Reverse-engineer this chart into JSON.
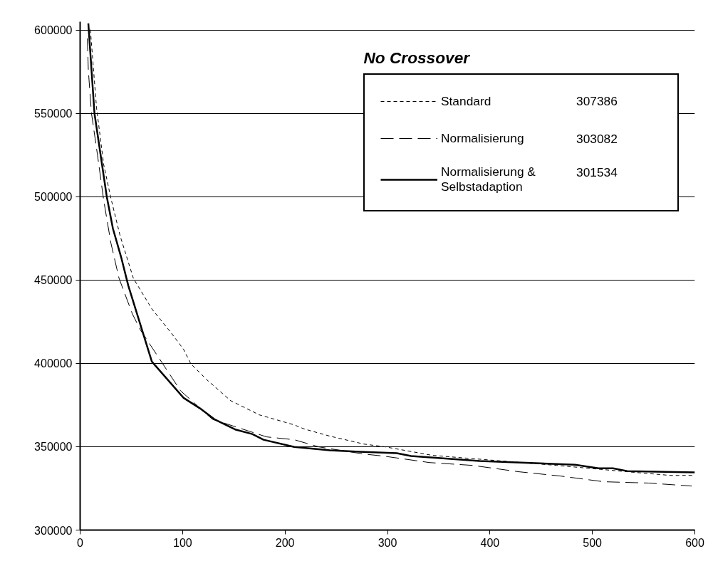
{
  "chart_data": {
    "type": "line",
    "title": "No Crossover",
    "xlim": [
      0,
      600
    ],
    "ylim": [
      300000,
      605000
    ],
    "xticks": [
      0,
      100,
      200,
      300,
      400,
      500,
      600
    ],
    "yticks": [
      300000,
      350000,
      400000,
      450000,
      500000,
      550000,
      600000
    ],
    "grid": "y",
    "legend": "top right",
    "annotations": [
      "307386",
      "303082",
      "301534"
    ],
    "series": [
      {
        "name": "Standard",
        "color": "#000000",
        "line_style": "dotted",
        "x": [
          10,
          16,
          23,
          30,
          39,
          52,
          70,
          89,
          101,
          108,
          124,
          147,
          175,
          209,
          219,
          244,
          277,
          298,
          344,
          465,
          534,
          576,
          600
        ],
        "values": [
          600300,
          553400,
          519300,
          499200,
          476600,
          451000,
          432700,
          418200,
          408400,
          399800,
          390000,
          377600,
          369100,
          363100,
          360600,
          356300,
          351600,
          349900,
          344800,
          338800,
          335000,
          332800,
          332800
        ]
      },
      {
        "name": "Normalisierung",
        "color": "#000000",
        "line_style": "dashed",
        "x": [
          7,
          8,
          11,
          17,
          23,
          30,
          38,
          51,
          59,
          98,
          129,
          182,
          209,
          233,
          277,
          296,
          341,
          383,
          428,
          469,
          511,
          555,
          597
        ],
        "values": [
          595000,
          576000,
          550400,
          524800,
          497900,
          472300,
          451000,
          429700,
          419900,
          383600,
          366500,
          355900,
          354200,
          349900,
          345600,
          344400,
          340500,
          338800,
          335000,
          332400,
          329000,
          328200,
          326400
        ]
      },
      {
        "name": "Normalisierung & Selbstadaption",
        "color": "#000000",
        "line_style": "solid",
        "x": [
          8,
          14,
          26,
          32,
          40,
          47,
          70,
          101,
          117,
          131,
          152,
          168,
          179,
          209,
          244,
          277,
          309,
          323,
          390,
          483,
          506,
          520,
          534,
          600
        ],
        "values": [
          604000,
          550000,
          500000,
          480900,
          463800,
          446700,
          401100,
          379300,
          373000,
          366500,
          360200,
          357600,
          354200,
          349900,
          347800,
          346900,
          346100,
          344400,
          341400,
          339200,
          337100,
          337100,
          335400,
          334600
        ]
      }
    ]
  }
}
